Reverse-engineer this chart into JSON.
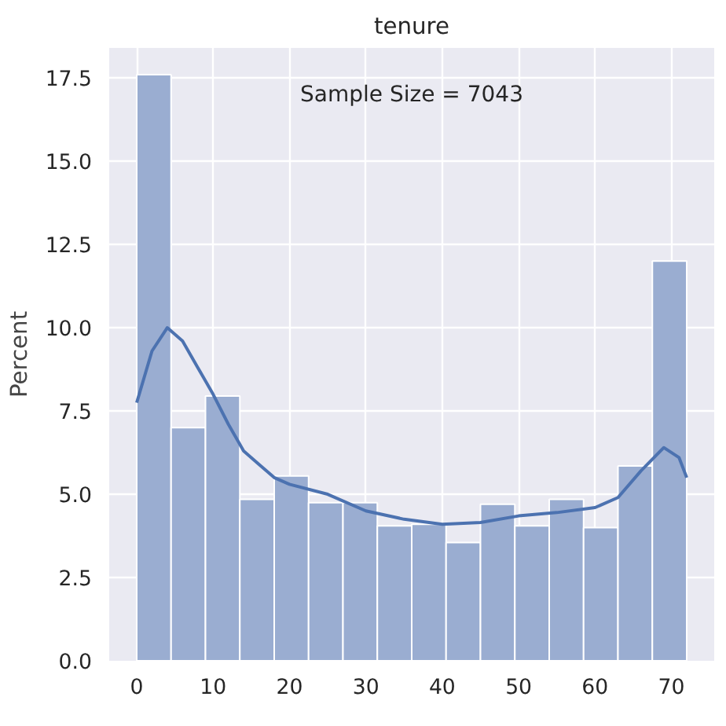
{
  "chart_data": {
    "type": "histogram",
    "title": "tenure",
    "ylabel": "Percent",
    "annotations": [
      "Sample Size = 7043"
    ],
    "series": [
      {
        "color": "#9aadd1",
        "bins": [
          0,
          4.5,
          9,
          13.5,
          18,
          22.5,
          27,
          31.5,
          36,
          40.5,
          45,
          49.5,
          54,
          58.5,
          63,
          67.5,
          72
        ],
        "values": [
          17.6,
          7.0,
          7.95,
          4.85,
          5.55,
          4.75,
          4.75,
          4.05,
          4.1,
          3.55,
          4.7,
          4.05,
          4.85,
          4.0,
          5.85,
          12.0
        ]
      },
      {
        "type": "line",
        "color": "#4c72b0",
        "x": [
          0,
          2,
          4,
          6,
          8,
          10,
          12,
          14,
          16,
          18,
          20,
          25,
          30,
          35,
          40,
          45,
          50,
          55,
          60,
          63,
          66,
          69,
          71,
          72
        ],
        "values": [
          7.75,
          9.3,
          10.0,
          9.6,
          8.8,
          8.0,
          7.1,
          6.3,
          5.9,
          5.5,
          5.3,
          5.0,
          4.5,
          4.25,
          4.1,
          4.15,
          4.35,
          4.45,
          4.6,
          4.9,
          5.7,
          6.4,
          6.1,
          5.5
        ]
      }
    ],
    "xlim": [
      -3.6,
      75.6
    ],
    "xticks": [
      0,
      10,
      20,
      30,
      40,
      50,
      60,
      70
    ],
    "ylim": [
      0,
      18.4
    ],
    "yticks": [
      {
        "value": 0,
        "label": "0.0"
      },
      {
        "value": 2.5,
        "label": "2.5"
      },
      {
        "value": 5,
        "label": "5.0"
      },
      {
        "value": 7.5,
        "label": "7.5"
      },
      {
        "value": 10,
        "label": "10.0"
      },
      {
        "value": 12.5,
        "label": "12.5"
      },
      {
        "value": 15,
        "label": "15.0"
      },
      {
        "value": 17.5,
        "label": "17.5"
      }
    ],
    "grid": true
  }
}
